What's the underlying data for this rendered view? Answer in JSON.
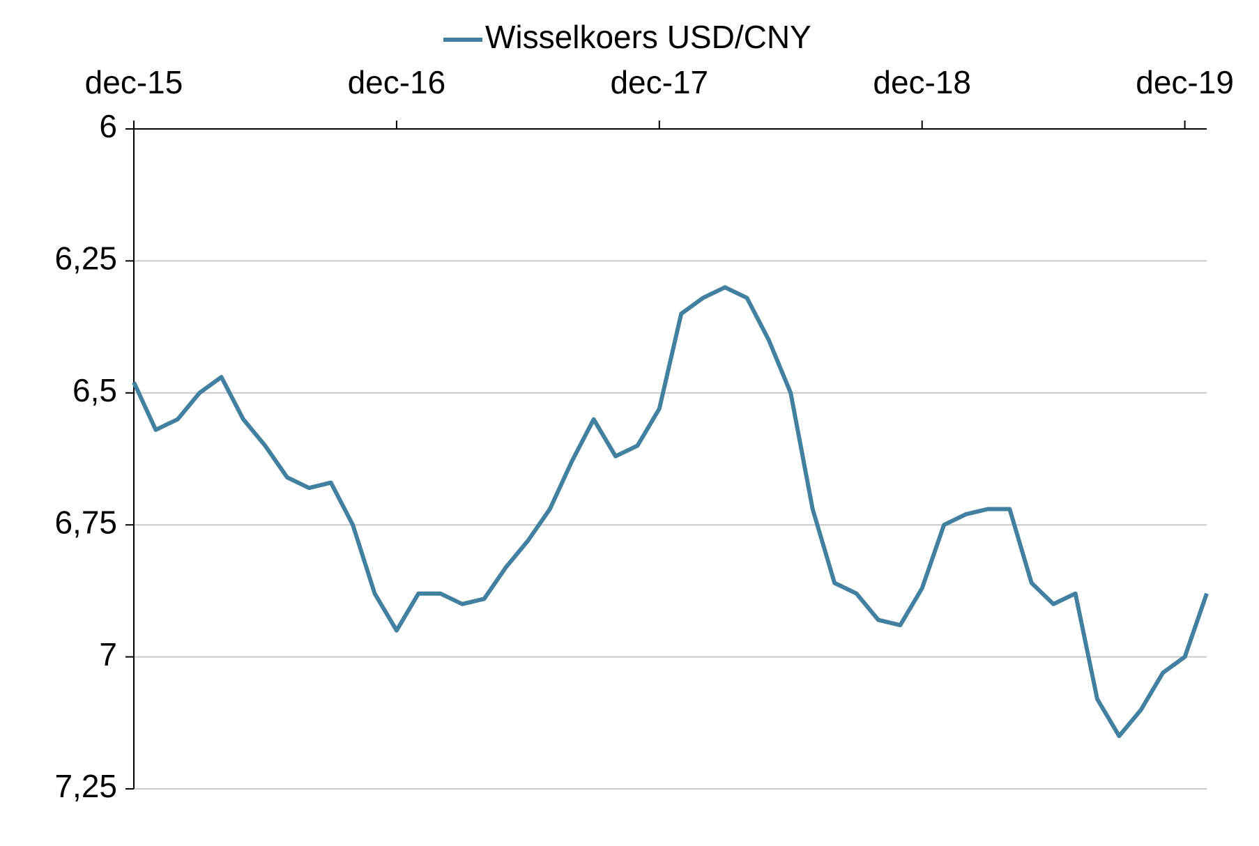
{
  "chart_data": {
    "type": "line",
    "x": [
      "dec-15",
      "jan-16",
      "feb-16",
      "mar-16",
      "apr-16",
      "may-16",
      "jun-16",
      "jul-16",
      "aug-16",
      "sep-16",
      "okt-16",
      "nov-16",
      "dec-16",
      "jan-17",
      "feb-17",
      "mrt-17",
      "apr-17",
      "mei-17",
      "jun-17",
      "jul-17",
      "aug-17",
      "sep-17",
      "okt-17",
      "nov-17",
      "dec-17",
      "jan-18",
      "feb-18",
      "mrt-18",
      "apr-18",
      "mei-18",
      "jun-18",
      "jul-18",
      "aug-18",
      "sep-18",
      "okt-18",
      "nov-18",
      "dec-18",
      "jan-19",
      "feb-19",
      "mrt-19",
      "apr-19",
      "mei-19",
      "jun-19",
      "jul-19",
      "aug-19",
      "sep-19",
      "okt-19",
      "nov-19",
      "dec-19",
      "jan-20"
    ],
    "series": [
      {
        "name": "Wisselkoers USD/CNY",
        "color": "#41809f",
        "values": [
          6.48,
          6.57,
          6.55,
          6.5,
          6.47,
          6.55,
          6.6,
          6.66,
          6.68,
          6.67,
          6.75,
          6.88,
          6.95,
          6.88,
          6.88,
          6.9,
          6.89,
          6.83,
          6.78,
          6.72,
          6.63,
          6.55,
          6.62,
          6.6,
          6.53,
          6.35,
          6.32,
          6.3,
          6.32,
          6.4,
          6.5,
          6.72,
          6.86,
          6.88,
          6.93,
          6.94,
          6.87,
          6.75,
          6.73,
          6.72,
          6.72,
          6.86,
          6.9,
          6.88,
          7.08,
          7.15,
          7.1,
          7.03,
          7.0,
          6.88
        ]
      }
    ],
    "xticks": [
      "dec-15",
      "dec-16",
      "dec-17",
      "dec-18",
      "dec-19"
    ],
    "ylim": [
      6,
      7.25
    ],
    "yticks": [
      6,
      {
        "value": 6.25,
        "label": "6,25"
      },
      {
        "value": 6.5,
        "label": "6,5"
      },
      {
        "value": 6.75,
        "label": "6,75"
      },
      7,
      {
        "value": 7.25,
        "label": "7,25"
      }
    ],
    "y_inverted": true,
    "x_axis_position": "top",
    "grid": true,
    "legend": "top"
  }
}
